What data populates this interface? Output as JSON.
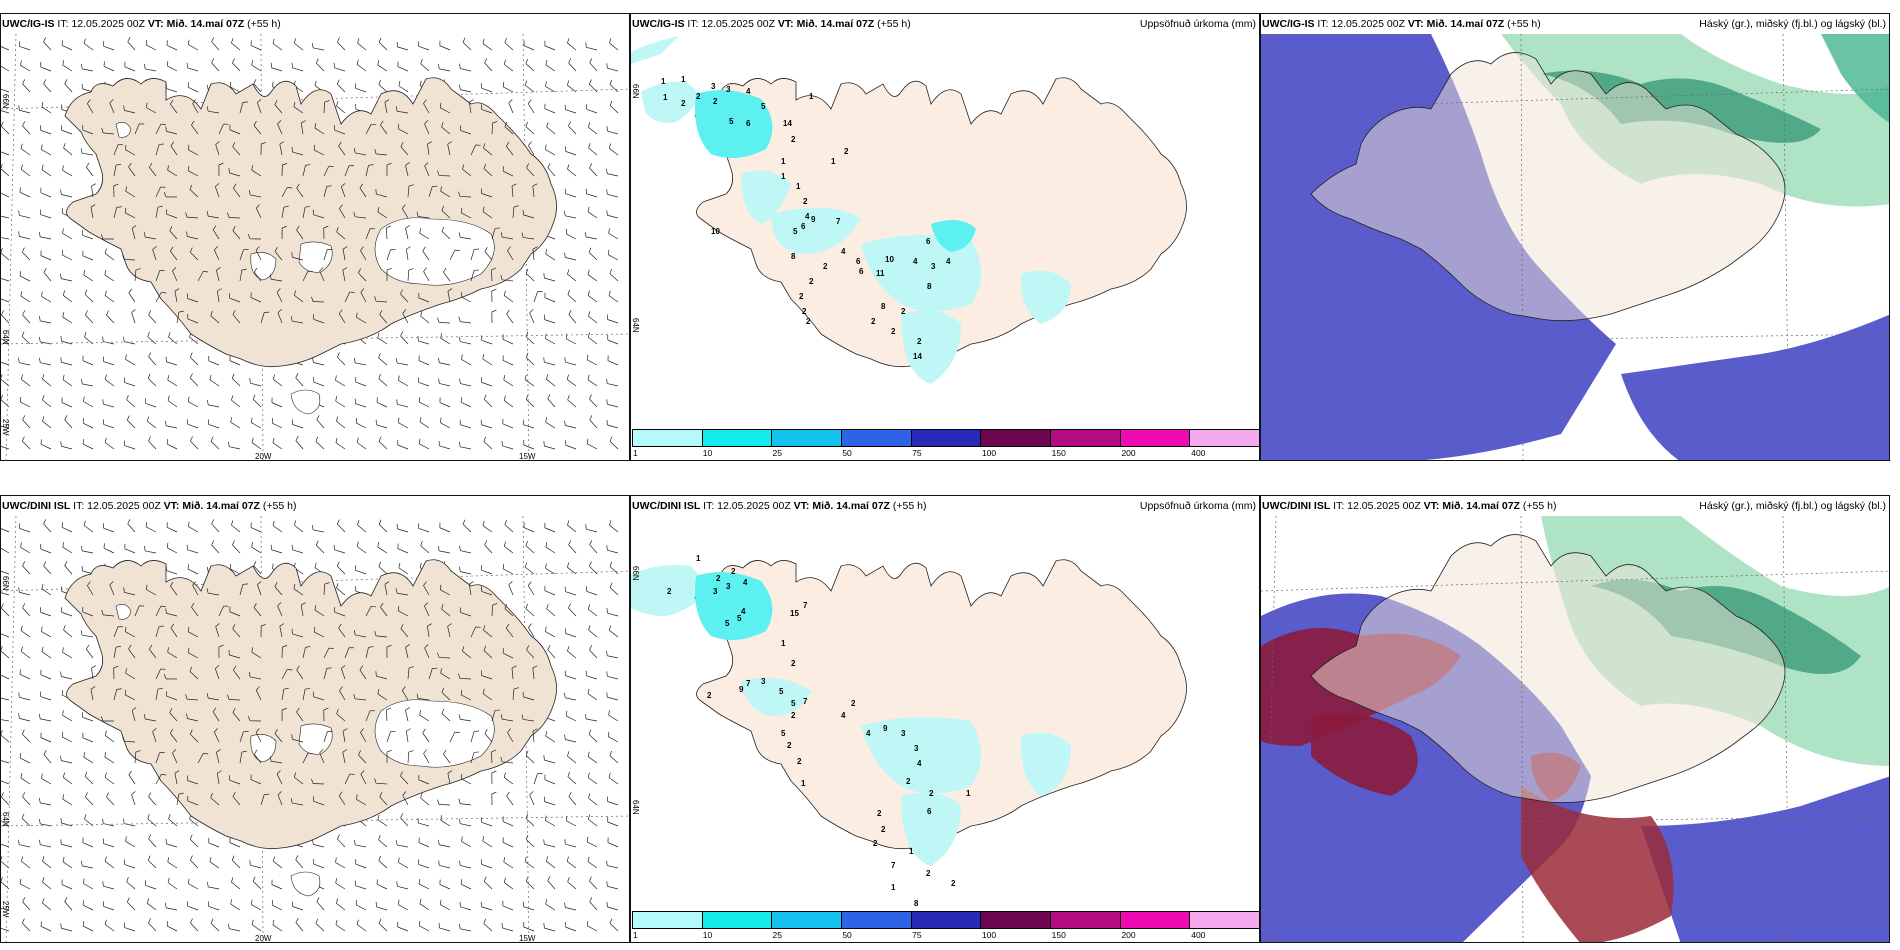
{
  "rows": [
    {
      "model": "UWC/IG-IS",
      "it_label": "IT: 12.05.2025 00Z",
      "vt_label": "VT: Mið. 14.maí 07Z",
      "lead": "(+55 h)",
      "precip_labels": [
        "1",
        "1",
        "1",
        "2",
        "2",
        "2",
        "3",
        "3",
        "4",
        "5",
        "5",
        "6",
        "14",
        "1",
        "2",
        "1",
        "1",
        "1",
        "2",
        "1",
        "2",
        "4",
        "7",
        "5",
        "6",
        "9",
        "10",
        "8",
        "2",
        "2",
        "2",
        "2",
        "2",
        "4",
        "6",
        "6",
        "11",
        "10",
        "4",
        "3",
        "8",
        "8",
        "2",
        "2",
        "2",
        "6",
        "4",
        "2",
        "14"
      ]
    },
    {
      "model": "UWC/DINI ISL",
      "it_label": "IT: 12.05.2025 00Z",
      "vt_label": "VT: Mið. 14.maí 07Z",
      "lead": "(+55 h)",
      "precip_labels": [
        "1",
        "2",
        "2",
        "2",
        "3",
        "3",
        "4",
        "4",
        "5",
        "5",
        "15",
        "7",
        "2",
        "1",
        "2",
        "9",
        "7",
        "3",
        "5",
        "5",
        "7",
        "2",
        "5",
        "2",
        "2",
        "1",
        "2",
        "4",
        "4",
        "9",
        "3",
        "3",
        "4",
        "2",
        "2",
        "6",
        "2",
        "2",
        "2",
        "1",
        "7",
        "2",
        "1",
        "8",
        "2",
        "1"
      ]
    }
  ],
  "precip_title": "Uppsöfnuð úrkoma (mm)",
  "cloud_title": "Háský (gr.), miðský (fj.bl.) og lágský (bl.)",
  "lat_labels": [
    "66N",
    "64N"
  ],
  "lon_labels": [
    "25W",
    "20W",
    "15W"
  ],
  "colorbar": {
    "ticks": [
      "1",
      "10",
      "25",
      "50",
      "75",
      "100",
      "150",
      "200",
      "400"
    ],
    "colors": [
      "#b4fafa",
      "#14ebeb",
      "#14c3ef",
      "#2d63e6",
      "#2a2ab8",
      "#6e0550",
      "#b40a82",
      "#f00ab4",
      "#f5aaf0"
    ]
  },
  "colors": {
    "land": "#f1e4d5",
    "precip_light": "#bff7f7",
    "precip_mid": "#5cf0f0",
    "cloud_low": "#5a5ccc",
    "cloud_high": "#2bb884",
    "cloud_mid": "#8b1b3d"
  }
}
